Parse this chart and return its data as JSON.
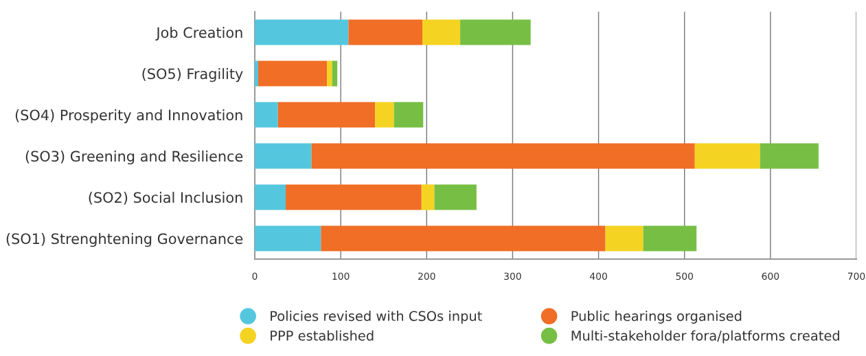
{
  "chart_data": {
    "type": "bar",
    "orientation": "horizontal",
    "stacked": true,
    "categories": [
      "Job Creation",
      "(SO5) Fragility",
      "(SO4) Prosperity and Innovation",
      "(SO3) Greening and Resilience",
      "(SO2) Social Inclusion",
      "(SO1) Strenghtening Governance"
    ],
    "series": [
      {
        "name": "Policies revised with CSOs input",
        "color": "#54c7df",
        "values": [
          109,
          4,
          27,
          66,
          36,
          77
        ]
      },
      {
        "name": "Public hearings organised",
        "color": "#f06e25",
        "values": [
          86,
          80,
          113,
          446,
          158,
          331
        ]
      },
      {
        "name": "PPP established",
        "color": "#f5d322",
        "values": [
          44,
          6,
          22,
          76,
          15,
          44
        ]
      },
      {
        "name": "Multi-stakeholder fora/platforms created",
        "color": "#76bf44",
        "values": [
          82,
          6,
          34,
          68,
          49,
          62
        ]
      }
    ],
    "xlim": [
      0,
      700
    ],
    "xticks": [
      0,
      100,
      200,
      300,
      400,
      500,
      600,
      700
    ],
    "grid": "x",
    "legend": "bottom",
    "marker": "circle"
  }
}
